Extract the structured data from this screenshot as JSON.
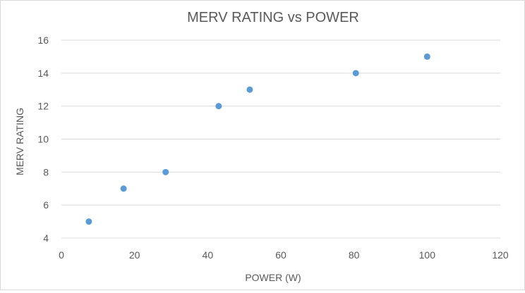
{
  "chart_data": {
    "type": "scatter",
    "title": "MERV RATING vs POWER",
    "xlabel": "POWER (W)",
    "ylabel": "MERV RATING",
    "xlim": [
      0,
      120
    ],
    "ylim": [
      4,
      16
    ],
    "xticks": [
      "0",
      "20",
      "40",
      "60",
      "80",
      "100",
      "120"
    ],
    "yticks": [
      "4",
      "6",
      "8",
      "10",
      "12",
      "14",
      "16"
    ],
    "grid": "horizontal",
    "legend": "none",
    "marker_color": "#5B9BD5",
    "points": [
      {
        "x": 7.5,
        "y": 5
      },
      {
        "x": 17,
        "y": 7
      },
      {
        "x": 28.5,
        "y": 8
      },
      {
        "x": 43,
        "y": 12
      },
      {
        "x": 51.5,
        "y": 13
      },
      {
        "x": 80.5,
        "y": 14
      },
      {
        "x": 100,
        "y": 15
      }
    ]
  }
}
